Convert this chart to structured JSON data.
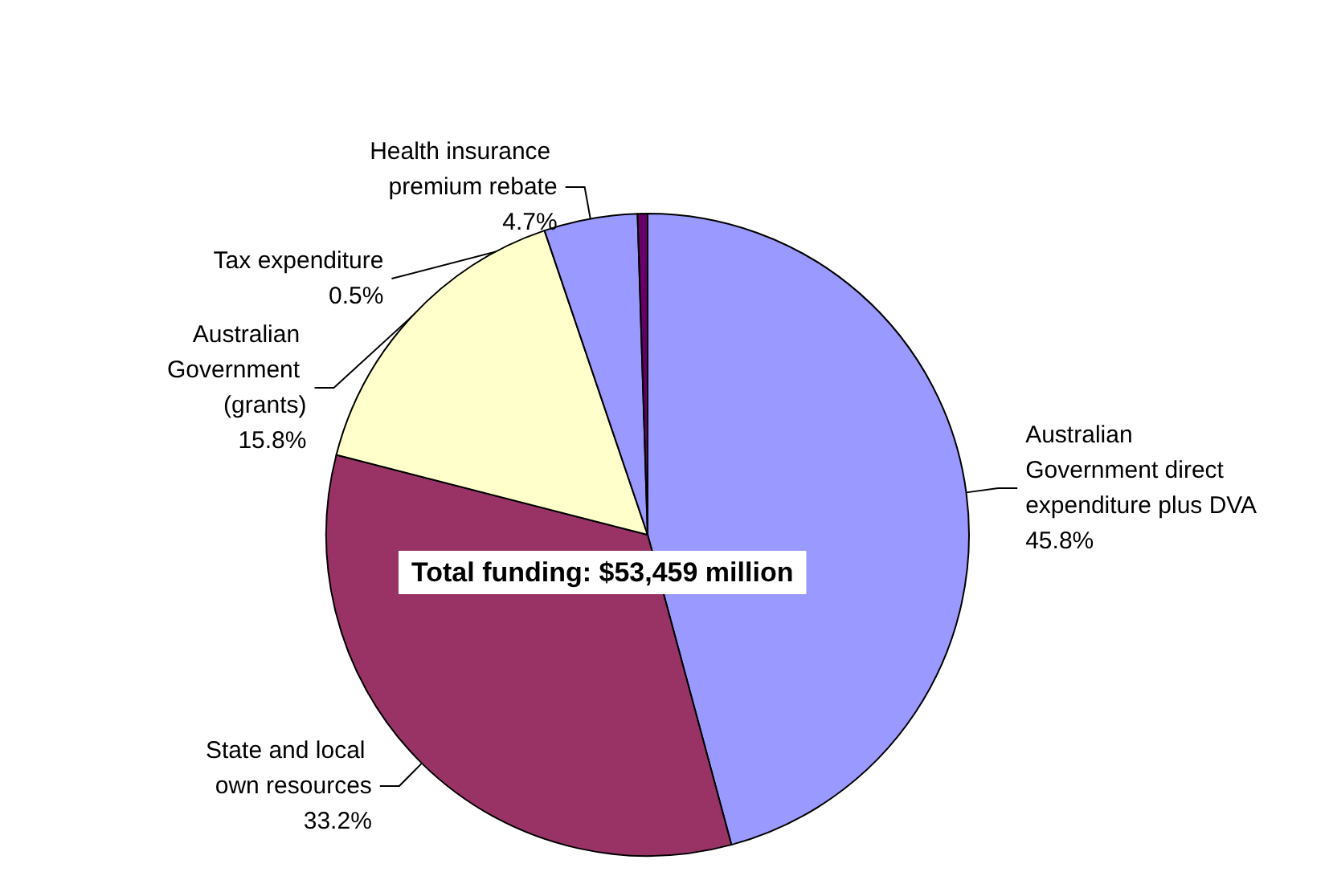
{
  "chart_data": {
    "type": "pie",
    "categories": [
      "Australian Government direct expenditure plus DVA",
      "State and local own resources",
      "Australian Government (grants)",
      "Health insurance premium rebate",
      "Tax expenditure"
    ],
    "values": [
      45.8,
      33.2,
      15.8,
      4.7,
      0.5
    ],
    "value_labels": [
      "45.8%",
      "33.2%",
      "15.8%",
      "4.7%",
      "0.5%"
    ],
    "colors": [
      "#9999ff",
      "#993366",
      "#ffffcc",
      "#9999ff",
      "#660066"
    ],
    "annotations": [
      "Total funding: $53,459 million"
    ],
    "legend": false
  }
}
